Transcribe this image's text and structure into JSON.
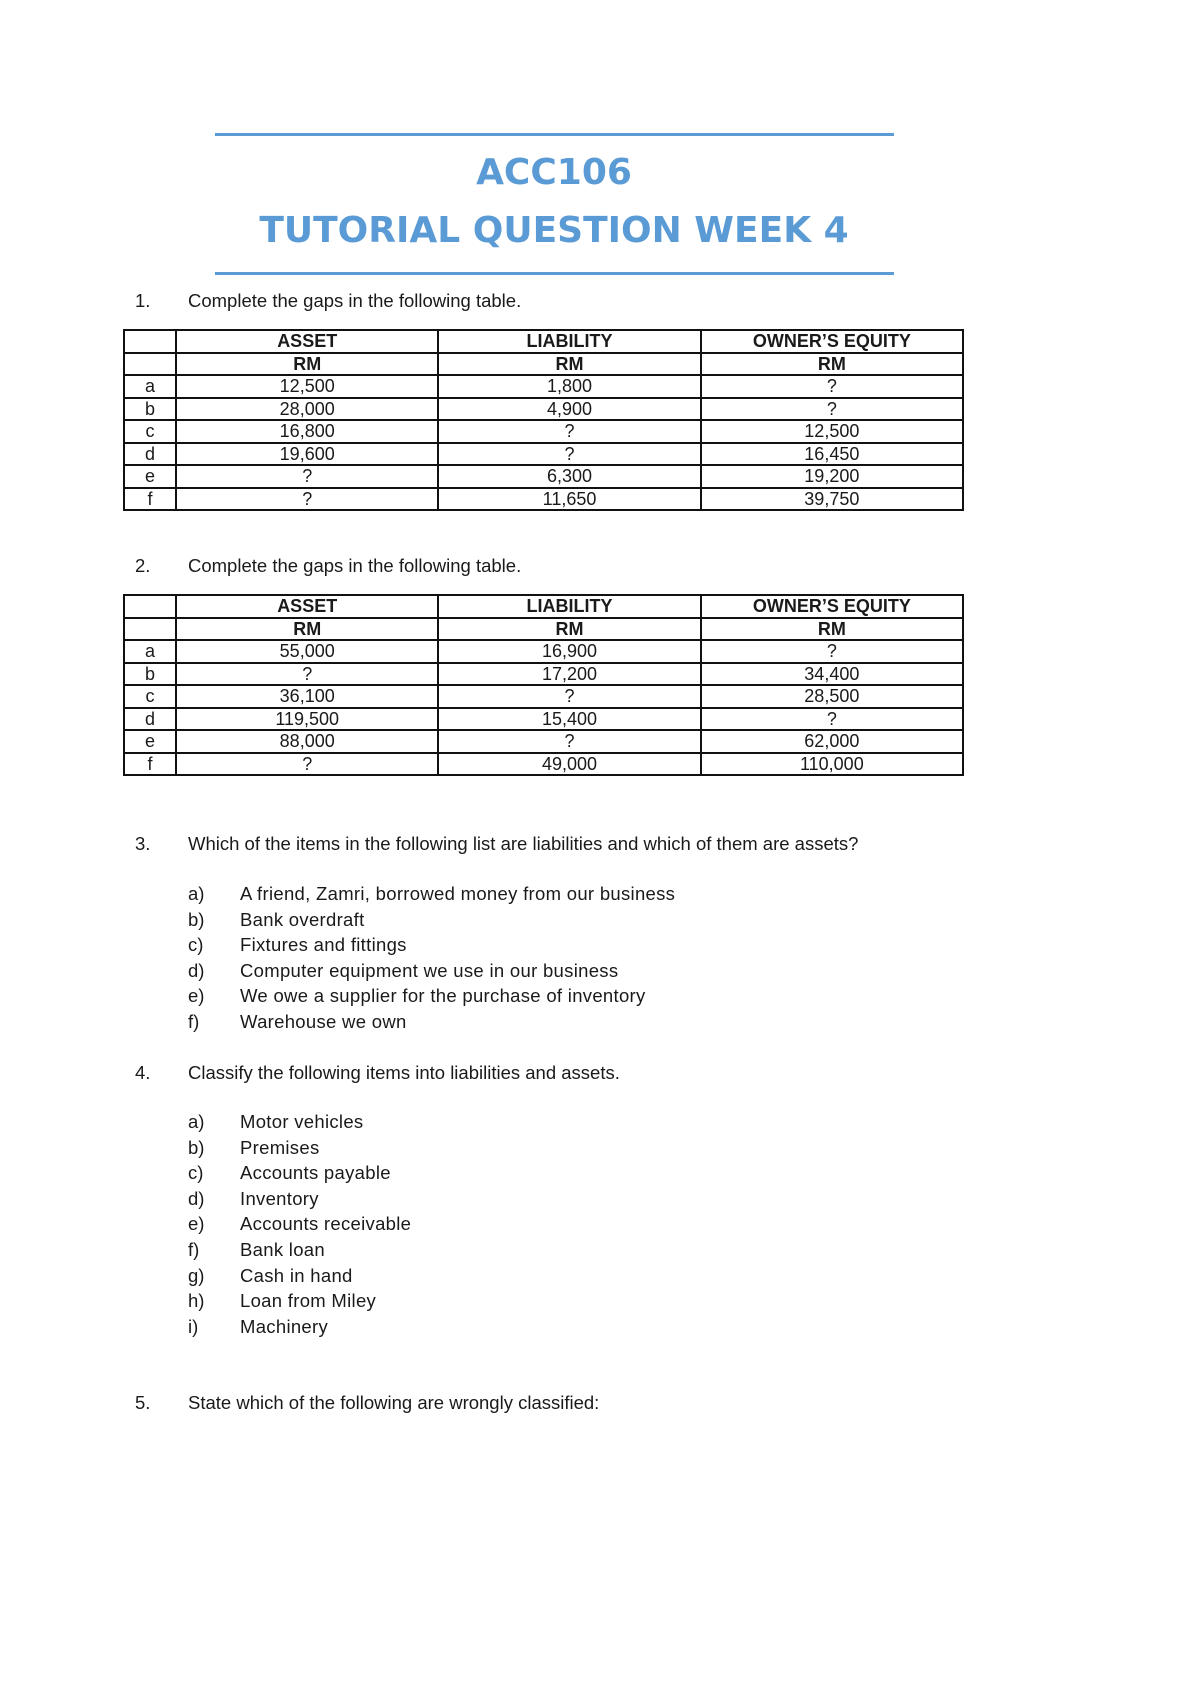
{
  "header": {
    "course": "ACC106",
    "title": "TUTORIAL QUESTION WEEK 4",
    "accent_color": "#5b9bd5"
  },
  "q1": {
    "num": "1.",
    "text": "Complete the gaps in the following table.",
    "headers": [
      "ASSET",
      "LIABILITY",
      "OWNER’S EQUITY"
    ],
    "units": [
      "RM",
      "RM",
      "RM"
    ],
    "rows": [
      [
        "a",
        "12,500",
        "1,800",
        "?"
      ],
      [
        "b",
        "28,000",
        "4,900",
        "?"
      ],
      [
        "c",
        "16,800",
        "?",
        "12,500"
      ],
      [
        "d",
        "19,600",
        "?",
        "16,450"
      ],
      [
        "e",
        "?",
        "6,300",
        "19,200"
      ],
      [
        "f",
        "?",
        "11,650",
        "39,750"
      ]
    ]
  },
  "q2": {
    "num": "2.",
    "text": "Complete the gaps in the following table.",
    "headers": [
      "ASSET",
      "LIABILITY",
      "OWNER’S EQUITY"
    ],
    "units": [
      "RM",
      "RM",
      "RM"
    ],
    "rows": [
      [
        "a",
        "55,000",
        "16,900",
        "?"
      ],
      [
        "b",
        "?",
        "17,200",
        "34,400"
      ],
      [
        "c",
        "36,100",
        "?",
        "28,500"
      ],
      [
        "d",
        "119,500",
        "15,400",
        "?"
      ],
      [
        "e",
        "88,000",
        "?",
        "62,000"
      ],
      [
        "f",
        "?",
        "49,000",
        "110,000"
      ]
    ]
  },
  "q3": {
    "num": "3.",
    "text": "Which of the items in the following list are liabilities and which of them are assets?",
    "items": [
      [
        "a)",
        "A friend, Zamri, borrowed money from our business"
      ],
      [
        "b)",
        "Bank overdraft"
      ],
      [
        "c)",
        "Fixtures and fittings"
      ],
      [
        "d)",
        "Computer equipment we use in our business"
      ],
      [
        "e)",
        "We owe a supplier for the purchase of inventory"
      ],
      [
        "f)",
        "Warehouse we own"
      ]
    ]
  },
  "q4": {
    "num": "4.",
    "text": "Classify the following items into liabilities and assets.",
    "items": [
      [
        "a)",
        "Motor vehicles"
      ],
      [
        "b)",
        "Premises"
      ],
      [
        "c)",
        "Accounts payable"
      ],
      [
        "d)",
        "Inventory"
      ],
      [
        "e)",
        "Accounts receivable"
      ],
      [
        "f)",
        "Bank loan"
      ],
      [
        "g)",
        "Cash in hand"
      ],
      [
        "h)",
        "Loan from Miley"
      ],
      [
        "i)",
        "Machinery"
      ]
    ]
  },
  "q5": {
    "num": "5.",
    "text": "State which of the following are wrongly classified:"
  }
}
